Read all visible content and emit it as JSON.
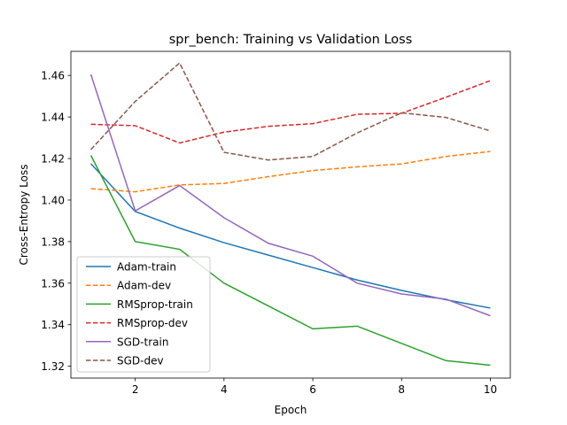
{
  "chart_data": {
    "type": "line",
    "title": "spr_bench: Training vs Validation Loss",
    "xlabel": "Epoch",
    "ylabel": "Cross-Entropy Loss",
    "xlim": [
      0.55,
      10.45
    ],
    "ylim": [
      1.3143,
      1.4716
    ],
    "xticks": [
      2,
      4,
      6,
      8,
      10
    ],
    "yticks": [
      1.32,
      1.34,
      1.36,
      1.38,
      1.4,
      1.42,
      1.44,
      1.46
    ],
    "ytick_labels": [
      "1.32",
      "1.34",
      "1.36",
      "1.38",
      "1.40",
      "1.42",
      "1.44",
      "1.46"
    ],
    "grid": false,
    "legend_position": "lower-left",
    "x": [
      1,
      2,
      3,
      4,
      5,
      6,
      7,
      8,
      9,
      10
    ],
    "series": [
      {
        "name": "Adam-train",
        "color": "#1f77b4",
        "dashed": false,
        "values": [
          1.4175,
          1.3945,
          1.3865,
          1.3795,
          1.3735,
          1.3675,
          1.3615,
          1.3565,
          1.352,
          1.348
        ]
      },
      {
        "name": "Adam-dev",
        "color": "#ff7f0e",
        "dashed": true,
        "values": [
          1.4055,
          1.404,
          1.4073,
          1.408,
          1.4113,
          1.4142,
          1.416,
          1.4174,
          1.421,
          1.4234
        ]
      },
      {
        "name": "RMSprop-train",
        "color": "#2ca02c",
        "dashed": false,
        "values": [
          1.4215,
          1.38,
          1.3763,
          1.36,
          1.349,
          1.338,
          1.3393,
          1.331,
          1.3227,
          1.3205
        ]
      },
      {
        "name": "RMSprop-dev",
        "color": "#d62728",
        "dashed": true,
        "values": [
          1.4365,
          1.4358,
          1.4275,
          1.4327,
          1.4355,
          1.4368,
          1.4413,
          1.4418,
          1.4495,
          1.4575
        ]
      },
      {
        "name": "SGD-train",
        "color": "#9467bd",
        "dashed": false,
        "values": [
          1.4605,
          1.3948,
          1.407,
          1.3915,
          1.3792,
          1.373,
          1.36,
          1.3548,
          1.3523,
          1.3443
        ]
      },
      {
        "name": "SGD-dev",
        "color": "#8c564b",
        "dashed": true,
        "values": [
          1.4243,
          1.4475,
          1.466,
          1.423,
          1.4193,
          1.421,
          1.4323,
          1.442,
          1.4398,
          1.4333
        ]
      }
    ]
  }
}
